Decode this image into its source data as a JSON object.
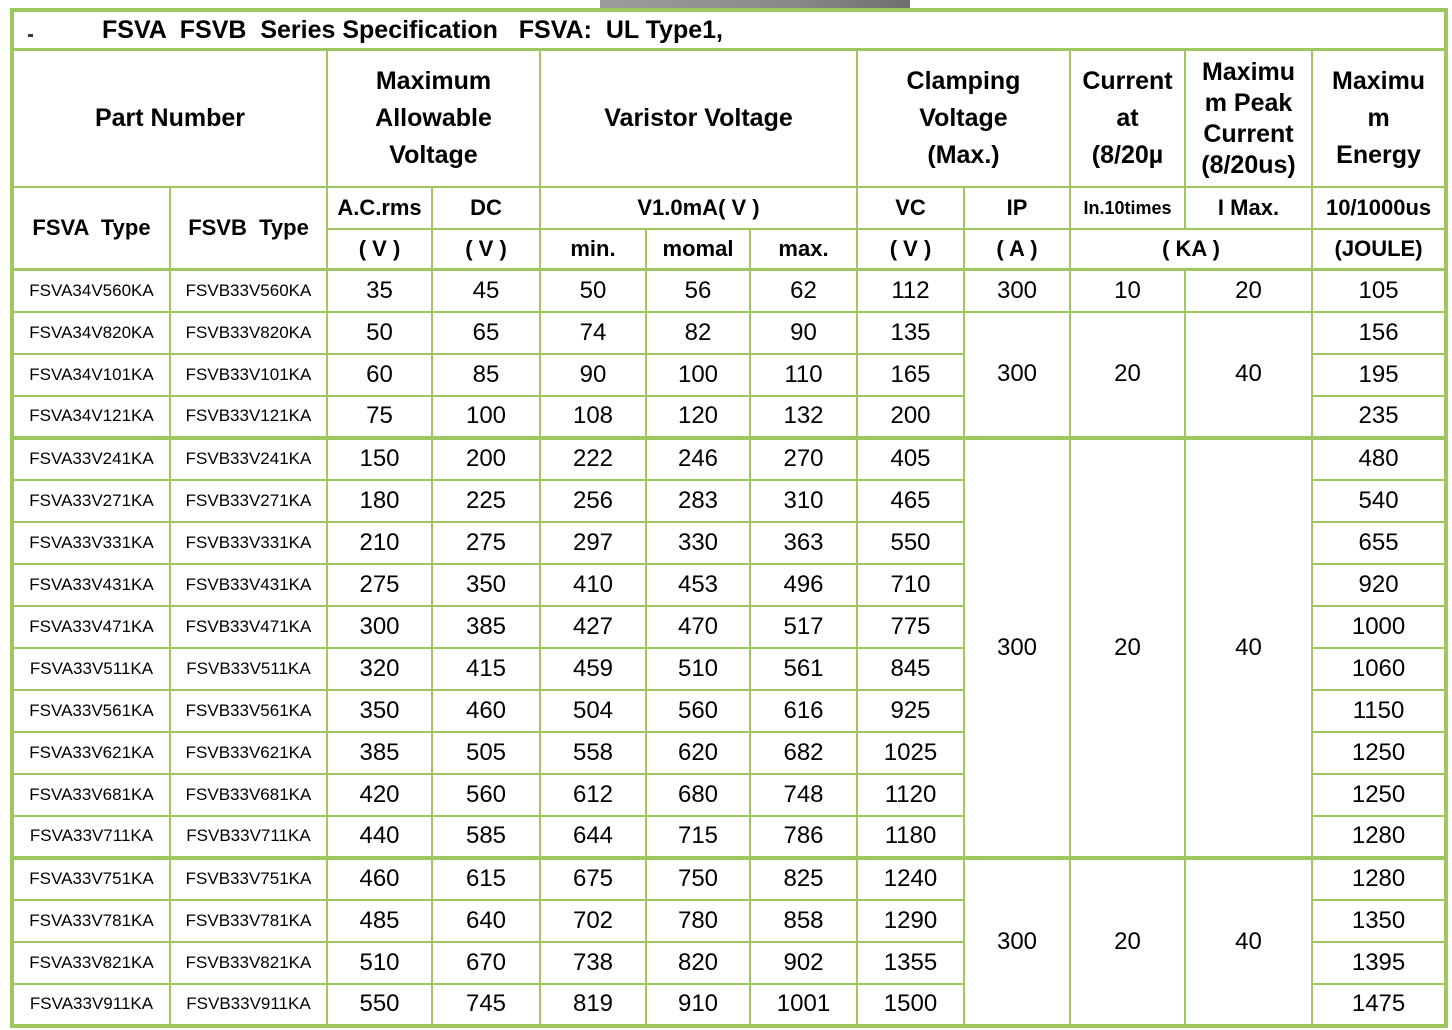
{
  "page": {
    "grid_color": "#9ec75f",
    "background": "#ffffff"
  },
  "title": {
    "text": "FSVA  FSVB  Series Specification   FSVA:  UL Type1,"
  },
  "header": {
    "part_number": "Part Number",
    "max_allowable": "Maximum\nAllowable\nVoltage",
    "varistor": "Varistor Voltage",
    "clamping": "Clamping\nVoltage\n(Max.)",
    "current_at": "Current\nat\n(8/20µ",
    "max_peak": "Maximu\nm Peak\nCurrent\n(8/20us)",
    "max_energy": "Maximu\nm\nEnergy",
    "fsva_type": "FSVA  Type",
    "fsvb_type": "FSVB  Type",
    "ac_rms": "A.C.rms",
    "dc": "DC",
    "v1ma": "V1.0mA( V )",
    "vc": "VC",
    "ip": "IP",
    "in10": "In.10times",
    "imax": "I Max.",
    "per_10_1000": "10/1000us",
    "v_unit": "( V )",
    "a_unit": "( A )",
    "ka_unit": "( KA )",
    "joule_unit": "(JOULE)",
    "min": "min.",
    "nomal": "momal",
    "max": "max."
  },
  "group_starts": [
    4,
    14
  ],
  "body": [
    {
      "cells": [
        "FSVA34V560KA",
        "FSVB33V560KA",
        "35",
        "45",
        "50",
        "56",
        "62",
        "112",
        "300",
        "10",
        "20",
        "105"
      ]
    },
    {
      "cells": [
        "FSVA34V820KA",
        "FSVB33V820KA",
        "50",
        "65",
        "74",
        "82",
        "90",
        "135",
        "300",
        "20",
        "40",
        "156"
      ],
      "spans": {
        "8": 3,
        "9": 3,
        "10": 3
      }
    },
    {
      "cells": [
        "FSVA34V101KA",
        "FSVB33V101KA",
        "60",
        "85",
        "90",
        "100",
        "110",
        "165",
        null,
        null,
        null,
        "195"
      ]
    },
    {
      "cells": [
        "FSVA34V121KA",
        "FSVB33V121KA",
        "75",
        "100",
        "108",
        "120",
        "132",
        "200",
        null,
        null,
        null,
        "235"
      ]
    },
    {
      "cells": [
        "FSVA33V241KA",
        "FSVB33V241KA",
        "150",
        "200",
        "222",
        "246",
        "270",
        "405",
        "300",
        "20",
        "40",
        "480"
      ],
      "spans": {
        "8": 10,
        "9": 10,
        "10": 10
      }
    },
    {
      "cells": [
        "FSVA33V271KA",
        "FSVB33V271KA",
        "180",
        "225",
        "256",
        "283",
        "310",
        "465",
        null,
        null,
        null,
        "540"
      ]
    },
    {
      "cells": [
        "FSVA33V331KA",
        "FSVB33V331KA",
        "210",
        "275",
        "297",
        "330",
        "363",
        "550",
        null,
        null,
        null,
        "655"
      ]
    },
    {
      "cells": [
        "FSVA33V431KA",
        "FSVB33V431KA",
        "275",
        "350",
        "410",
        "453",
        "496",
        "710",
        null,
        null,
        null,
        "920"
      ]
    },
    {
      "cells": [
        "FSVA33V471KA",
        "FSVB33V471KA",
        "300",
        "385",
        "427",
        "470",
        "517",
        "775",
        null,
        null,
        null,
        "1000"
      ]
    },
    {
      "cells": [
        "FSVA33V511KA",
        "FSVB33V511KA",
        "320",
        "415",
        "459",
        "510",
        "561",
        "845",
        null,
        null,
        null,
        "1060"
      ]
    },
    {
      "cells": [
        "FSVA33V561KA",
        "FSVB33V561KA",
        "350",
        "460",
        "504",
        "560",
        "616",
        "925",
        null,
        null,
        null,
        "1150"
      ]
    },
    {
      "cells": [
        "FSVA33V621KA",
        "FSVB33V621KA",
        "385",
        "505",
        "558",
        "620",
        "682",
        "1025",
        null,
        null,
        null,
        "1250"
      ]
    },
    {
      "cells": [
        "FSVA33V681KA",
        "FSVB33V681KA",
        "420",
        "560",
        "612",
        "680",
        "748",
        "1120",
        null,
        null,
        null,
        "1250"
      ]
    },
    {
      "cells": [
        "FSVA33V711KA",
        "FSVB33V711KA",
        "440",
        "585",
        "644",
        "715",
        "786",
        "1180",
        null,
        null,
        null,
        "1280"
      ]
    },
    {
      "cells": [
        "FSVA33V751KA",
        "FSVB33V751KA",
        "460",
        "615",
        "675",
        "750",
        "825",
        "1240",
        "300",
        "20",
        "40",
        "1280"
      ],
      "spans": {
        "8": 4,
        "9": 4,
        "10": 4
      }
    },
    {
      "cells": [
        "FSVA33V781KA",
        "FSVB33V781KA",
        "485",
        "640",
        "702",
        "780",
        "858",
        "1290",
        null,
        null,
        null,
        "1350"
      ]
    },
    {
      "cells": [
        "FSVA33V821KA",
        "FSVB33V821KA",
        "510",
        "670",
        "738",
        "820",
        "902",
        "1355",
        null,
        null,
        null,
        "1395"
      ]
    },
    {
      "cells": [
        "FSVA33V911KA",
        "FSVB33V911KA",
        "550",
        "745",
        "819",
        "910",
        "1001",
        "1500",
        null,
        null,
        null,
        "1475"
      ]
    }
  ]
}
